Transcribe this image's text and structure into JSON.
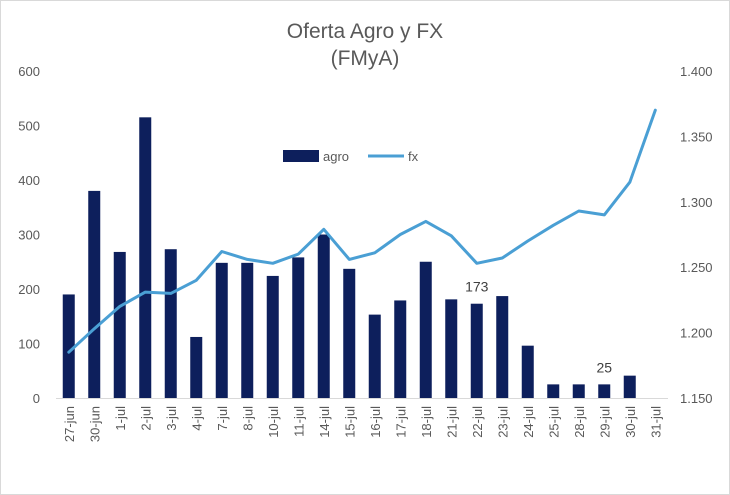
{
  "chart_data": {
    "type": "bar-line-combo",
    "title": "Oferta Agro y FX",
    "subtitle": "(FMyA)",
    "categories": [
      "27-jun",
      "30-jun",
      "1-jul",
      "2-jul",
      "3-jul",
      "4-jul",
      "7-jul",
      "8-jul",
      "10-jul",
      "11-jul",
      "14-jul",
      "15-jul",
      "16-jul",
      "17-jul",
      "18-jul",
      "21-jul",
      "22-jul",
      "23-jul",
      "24-jul",
      "25-jul",
      "28-jul",
      "29-jul",
      "30-jul",
      "31-jul"
    ],
    "series": [
      {
        "name": "agro",
        "type": "bar",
        "axis": "left",
        "color": "#0d1f5c",
        "values": [
          190,
          380,
          268,
          515,
          273,
          112,
          248,
          248,
          224,
          258,
          300,
          237,
          153,
          179,
          250,
          181,
          173,
          187,
          96,
          25,
          25,
          25,
          41,
          null
        ]
      },
      {
        "name": "fx",
        "type": "line",
        "axis": "right",
        "color": "#4a9fd4",
        "values": [
          1185,
          1203,
          1220,
          1231,
          1230,
          1240,
          1262,
          1256,
          1253,
          1260,
          1279,
          1256,
          1261,
          1275,
          1285,
          1274,
          1253,
          1257,
          1270,
          1282,
          1293,
          1290,
          1315,
          1370
        ]
      }
    ],
    "y_left": {
      "min": 0,
      "max": 600,
      "ticks": [
        "0",
        "100",
        "200",
        "300",
        "400",
        "500",
        "600"
      ]
    },
    "y_right": {
      "min": 1150,
      "max": 1400,
      "ticks": [
        "1.150",
        "1.200",
        "1.250",
        "1.300",
        "1.350",
        "1.400"
      ]
    },
    "data_labels": [
      {
        "category": "22-jul",
        "text": "173"
      },
      {
        "category": "29-jul",
        "text": "25"
      }
    ],
    "legend": "top-center",
    "grid": false
  }
}
